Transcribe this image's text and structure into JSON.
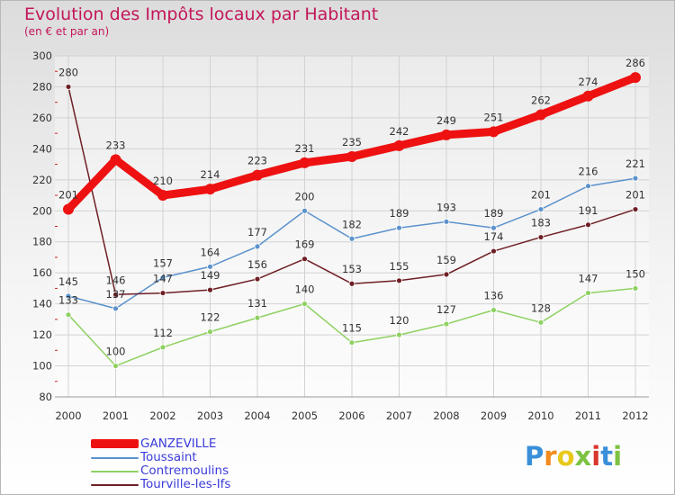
{
  "title": "Evolution des Impôts locaux par Habitant",
  "subtitle": "(en € et par an)",
  "logo_text": "Proxiti",
  "chart_data": {
    "type": "line",
    "x": [
      "2000",
      "2001",
      "2002",
      "2003",
      "2004",
      "2005",
      "2006",
      "2007",
      "2008",
      "2009",
      "2010",
      "2011",
      "2012"
    ],
    "ylim": [
      80,
      300
    ],
    "yticks": [
      80,
      100,
      120,
      140,
      160,
      180,
      200,
      220,
      240,
      260,
      280,
      300
    ],
    "grid": true,
    "legend_position": "bottom-left",
    "series": [
      {
        "name": "GANZEVILLE",
        "color": "#ee1111",
        "values": [
          201,
          233,
          210,
          214,
          223,
          231,
          235,
          242,
          249,
          251,
          262,
          274,
          286
        ]
      },
      {
        "name": "Toussaint",
        "color": "#5b92cc",
        "values": [
          145,
          137,
          157,
          164,
          177,
          200,
          182,
          189,
          193,
          189,
          201,
          216,
          221
        ]
      },
      {
        "name": "Contremoulins",
        "color": "#8fd162",
        "values": [
          133,
          100,
          112,
          122,
          131,
          140,
          115,
          120,
          127,
          136,
          128,
          147,
          150
        ]
      },
      {
        "name": "Tourville-les-Ifs",
        "color": "#6e1f25",
        "values": [
          280,
          146,
          147,
          149,
          156,
          169,
          153,
          155,
          159,
          174,
          183,
          191,
          201
        ]
      }
    ]
  }
}
